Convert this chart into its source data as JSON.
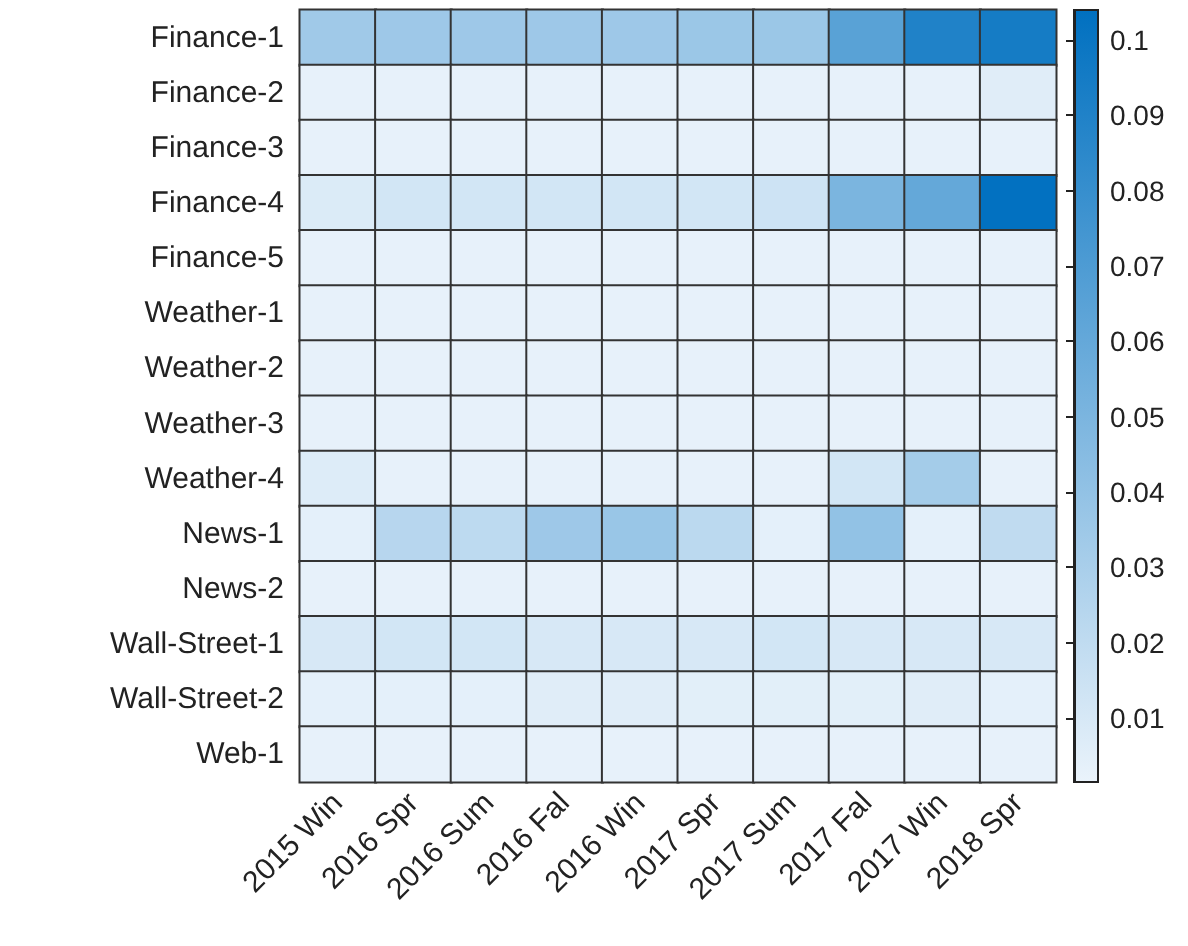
{
  "chart_data": {
    "type": "heatmap",
    "categories": [
      "2015 Win",
      "2016 Spr",
      "2016 Sum",
      "2016 Fal",
      "2016 Win",
      "2017 Spr",
      "2017 Sum",
      "2017 Fal",
      "2017 Win",
      "2018 Spr"
    ],
    "y_categories": [
      "Finance-1",
      "Finance-2",
      "Finance-3",
      "Finance-4",
      "Finance-5",
      "Weather-1",
      "Weather-2",
      "Weather-3",
      "Weather-4",
      "News-1",
      "News-2",
      "Wall-Street-1",
      "Wall-Street-2",
      "Web-1"
    ],
    "cells": [
      [
        0.034,
        0.035,
        0.035,
        0.035,
        0.035,
        0.036,
        0.036,
        0.065,
        0.09,
        0.095
      ],
      [
        0.003,
        0.003,
        0.003,
        0.003,
        0.003,
        0.003,
        0.003,
        0.003,
        0.003,
        0.006
      ],
      [
        0.003,
        0.003,
        0.003,
        0.003,
        0.003,
        0.003,
        0.003,
        0.003,
        0.003,
        0.003
      ],
      [
        0.008,
        0.012,
        0.012,
        0.012,
        0.012,
        0.012,
        0.014,
        0.05,
        0.06,
        0.103
      ],
      [
        0.003,
        0.003,
        0.003,
        0.003,
        0.003,
        0.003,
        0.003,
        0.003,
        0.003,
        0.003
      ],
      [
        0.003,
        0.003,
        0.003,
        0.003,
        0.003,
        0.003,
        0.003,
        0.003,
        0.003,
        0.003
      ],
      [
        0.003,
        0.003,
        0.003,
        0.003,
        0.003,
        0.003,
        0.003,
        0.003,
        0.003,
        0.003
      ],
      [
        0.003,
        0.003,
        0.003,
        0.003,
        0.003,
        0.003,
        0.003,
        0.003,
        0.003,
        0.003
      ],
      [
        0.007,
        0.003,
        0.003,
        0.003,
        0.003,
        0.003,
        0.003,
        0.012,
        0.032,
        0.003
      ],
      [
        0.004,
        0.024,
        0.021,
        0.035,
        0.037,
        0.022,
        0.004,
        0.04,
        0.004,
        0.02
      ],
      [
        0.003,
        0.003,
        0.003,
        0.003,
        0.003,
        0.003,
        0.003,
        0.003,
        0.003,
        0.003
      ],
      [
        0.01,
        0.012,
        0.012,
        0.01,
        0.01,
        0.01,
        0.012,
        0.01,
        0.01,
        0.01
      ],
      [
        0.004,
        0.004,
        0.004,
        0.006,
        0.006,
        0.005,
        0.005,
        0.005,
        0.006,
        0.004
      ],
      [
        0.003,
        0.003,
        0.003,
        0.003,
        0.003,
        0.003,
        0.003,
        0.003,
        0.003,
        0.003
      ]
    ],
    "clim": [
      0.0015,
      0.104
    ],
    "cticks": [
      0.01,
      0.02,
      0.03,
      0.04,
      0.05,
      0.06,
      0.07,
      0.08,
      0.09,
      0.1
    ]
  }
}
